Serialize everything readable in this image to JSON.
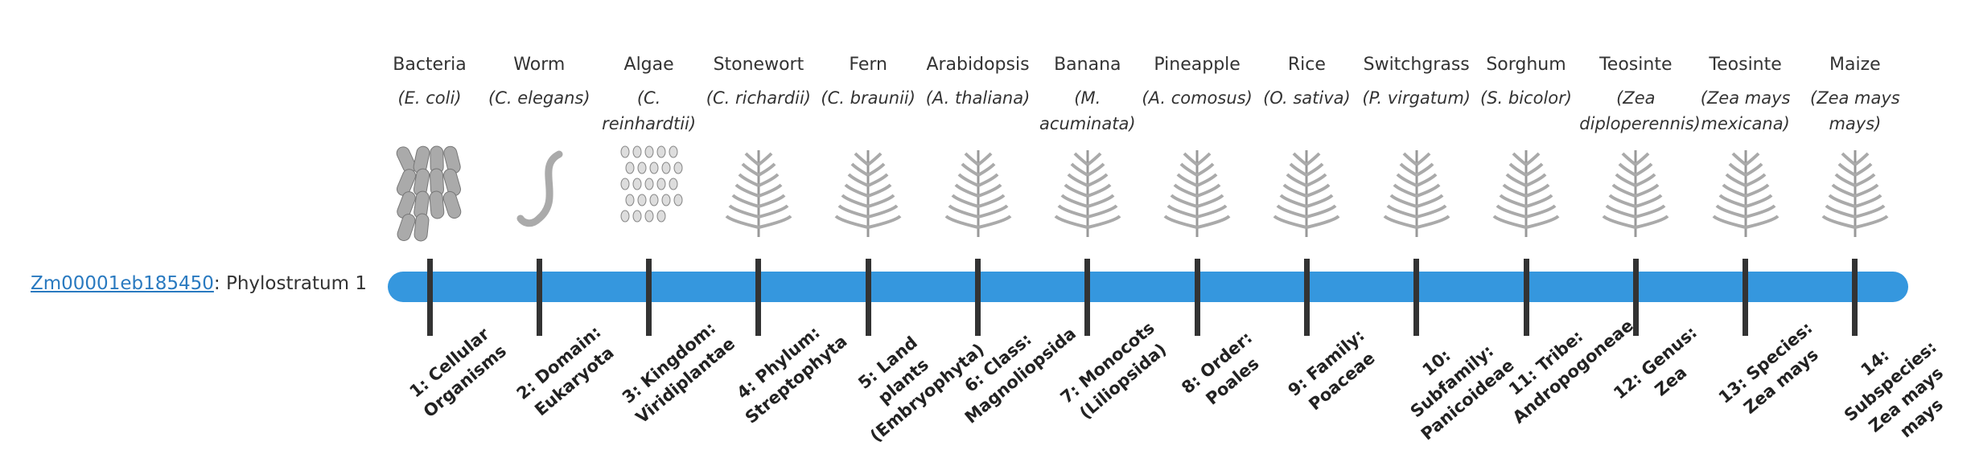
{
  "gene": {
    "id": "Zm00001eb185450",
    "label": ": Phylostratum 1"
  },
  "taxa": [
    {
      "name": "Bacteria",
      "species": "(E. coli)",
      "stratum": "1: Cellular Organisms"
    },
    {
      "name": "Worm",
      "species": "(C. elegans)",
      "stratum": "2: Domain: Eukaryota"
    },
    {
      "name": "Algae",
      "species": "(C. reinhardtii)",
      "stratum": "3: Kingdom: Viridiplantae"
    },
    {
      "name": "Stonewort",
      "species": "(C. richardii)",
      "stratum": "4: Phylum: Streptophyta"
    },
    {
      "name": "Fern",
      "species": "(C. braunii)",
      "stratum": "5: Land plants (Embryophyta)"
    },
    {
      "name": "Arabidopsis",
      "species": "(A. thaliana)",
      "stratum": "6: Class: Magnoliopsida"
    },
    {
      "name": "Banana",
      "species": "(M. acuminata)",
      "stratum": "7: Monocots (Liliopsida)"
    },
    {
      "name": "Pineapple",
      "species": "(A. comosus)",
      "stratum": "8: Order: Poales"
    },
    {
      "name": "Rice",
      "species": "(O. sativa)",
      "stratum": "9: Family: Poaceae"
    },
    {
      "name": "Switchgrass",
      "species": "(P. virgatum)",
      "stratum": "10: Subfamily: Panicoideae"
    },
    {
      "name": "Sorghum",
      "species": "(S. bicolor)",
      "stratum": "11: Tribe: Andropogoneae"
    },
    {
      "name": "Teosinte",
      "species": "(Zea diploperennis)",
      "stratum": "12: Genus: Zea"
    },
    {
      "name": "Teosinte",
      "species": "(Zea mays mexicana)",
      "stratum": "13: Species: Zea mays"
    },
    {
      "name": "Maize",
      "species": "(Zea mays mays)",
      "stratum": "14: Subspecies: Zea mays mays"
    }
  ]
}
